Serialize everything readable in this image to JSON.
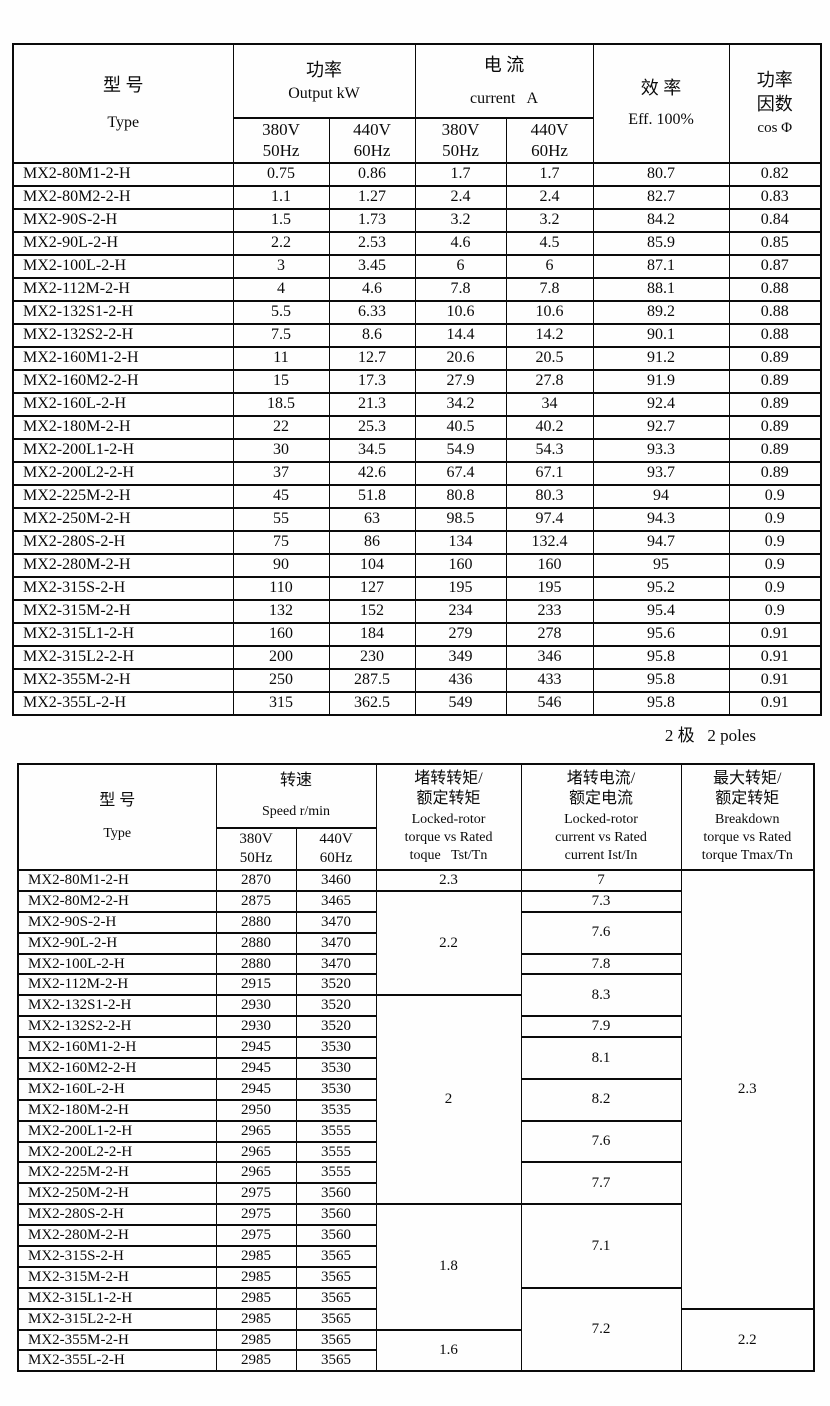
{
  "colors": {
    "background": "#fefefe",
    "border": "#0a0a0a",
    "text": "#0a0a0a"
  },
  "caption": {
    "label": "2 极   2 poles"
  },
  "table1": {
    "header": {
      "type_cn": "型 号",
      "type_en": "Type",
      "power_cn": "功率",
      "power_en": "Output kW",
      "current_cn": "电 流",
      "current_en": "current   A",
      "eff_cn": "效 率",
      "eff_en": "Eff. 100%",
      "pf_cn": "功率\n因数",
      "pf_en": "cos Φ",
      "sub_headers": [
        "380V\n50Hz",
        "440V\n60Hz",
        "380V\n50Hz",
        "440V\n60Hz"
      ]
    },
    "rows": [
      [
        "MX2-80M1-2-H",
        "0.75",
        "0.86",
        "1.7",
        "1.7",
        "80.7",
        "0.82"
      ],
      [
        "MX2-80M2-2-H",
        "1.1",
        "1.27",
        "2.4",
        "2.4",
        "82.7",
        "0.83"
      ],
      [
        "MX2-90S-2-H",
        "1.5",
        "1.73",
        "3.2",
        "3.2",
        "84.2",
        "0.84"
      ],
      [
        "MX2-90L-2-H",
        "2.2",
        "2.53",
        "4.6",
        "4.5",
        "85.9",
        "0.85"
      ],
      [
        "MX2-100L-2-H",
        "3",
        "3.45",
        "6",
        "6",
        "87.1",
        "0.87"
      ],
      [
        "MX2-112M-2-H",
        "4",
        "4.6",
        "7.8",
        "7.8",
        "88.1",
        "0.88"
      ],
      [
        "MX2-132S1-2-H",
        "5.5",
        "6.33",
        "10.6",
        "10.6",
        "89.2",
        "0.88"
      ],
      [
        "MX2-132S2-2-H",
        "7.5",
        "8.6",
        "14.4",
        "14.2",
        "90.1",
        "0.88"
      ],
      [
        "MX2-160M1-2-H",
        "11",
        "12.7",
        "20.6",
        "20.5",
        "91.2",
        "0.89"
      ],
      [
        "MX2-160M2-2-H",
        "15",
        "17.3",
        "27.9",
        "27.8",
        "91.9",
        "0.89"
      ],
      [
        "MX2-160L-2-H",
        "18.5",
        "21.3",
        "34.2",
        "34",
        "92.4",
        "0.89"
      ],
      [
        "MX2-180M-2-H",
        "22",
        "25.3",
        "40.5",
        "40.2",
        "92.7",
        "0.89"
      ],
      [
        "MX2-200L1-2-H",
        "30",
        "34.5",
        "54.9",
        "54.3",
        "93.3",
        "0.89"
      ],
      [
        "MX2-200L2-2-H",
        "37",
        "42.6",
        "67.4",
        "67.1",
        "93.7",
        "0.89"
      ],
      [
        "MX2-225M-2-H",
        "45",
        "51.8",
        "80.8",
        "80.3",
        "94",
        "0.9"
      ],
      [
        "MX2-250M-2-H",
        "55",
        "63",
        "98.5",
        "97.4",
        "94.3",
        "0.9"
      ],
      [
        "MX2-280S-2-H",
        "75",
        "86",
        "134",
        "132.4",
        "94.7",
        "0.9"
      ],
      [
        "MX2-280M-2-H",
        "90",
        "104",
        "160",
        "160",
        "95",
        "0.9"
      ],
      [
        "MX2-315S-2-H",
        "110",
        "127",
        "195",
        "195",
        "95.2",
        "0.9"
      ],
      [
        "MX2-315M-2-H",
        "132",
        "152",
        "234",
        "233",
        "95.4",
        "0.9"
      ],
      [
        "MX2-315L1-2-H",
        "160",
        "184",
        "279",
        "278",
        "95.6",
        "0.91"
      ],
      [
        "MX2-315L2-2-H",
        "200",
        "230",
        "349",
        "346",
        "95.8",
        "0.91"
      ],
      [
        "MX2-355M-2-H",
        "250",
        "287.5",
        "436",
        "433",
        "95.8",
        "0.91"
      ],
      [
        "MX2-355L-2-H",
        "315",
        "362.5",
        "549",
        "546",
        "95.8",
        "0.91"
      ]
    ]
  },
  "table2": {
    "header": {
      "type_cn": "型 号",
      "type_en": "Type",
      "speed_cn": "转速",
      "speed_en": "Speed r/min",
      "tst_cn": "堵转转矩/\n额定转矩",
      "tst_en": "Locked-rotor\ntorque vs Rated\ntoque   Tst/Tn",
      "ist_cn": "堵转电流/\n额定电流",
      "ist_en": "Locked-rotor\ncurrent vs Rated\ncurrent Ist/In",
      "tmax_cn": "最大转矩/\n额定转矩",
      "tmax_en": "Breakdown\ntorque vs Rated\ntorque Tmax/Tn",
      "sub_headers": [
        "380V\n50Hz",
        "440V\n60Hz"
      ]
    },
    "rows": [
      [
        "MX2-80M1-2-H",
        "2870",
        "3460"
      ],
      [
        "MX2-80M2-2-H",
        "2875",
        "3465"
      ],
      [
        "MX2-90S-2-H",
        "2880",
        "3470"
      ],
      [
        "MX2-90L-2-H",
        "2880",
        "3470"
      ],
      [
        "MX2-100L-2-H",
        "2880",
        "3470"
      ],
      [
        "MX2-112M-2-H",
        "2915",
        "3520"
      ],
      [
        "MX2-132S1-2-H",
        "2930",
        "3520"
      ],
      [
        "MX2-132S2-2-H",
        "2930",
        "3520"
      ],
      [
        "MX2-160M1-2-H",
        "2945",
        "3530"
      ],
      [
        "MX2-160M2-2-H",
        "2945",
        "3530"
      ],
      [
        "MX2-160L-2-H",
        "2945",
        "3530"
      ],
      [
        "MX2-180M-2-H",
        "2950",
        "3535"
      ],
      [
        "MX2-200L1-2-H",
        "2965",
        "3555"
      ],
      [
        "MX2-200L2-2-H",
        "2965",
        "3555"
      ],
      [
        "MX2-225M-2-H",
        "2965",
        "3555"
      ],
      [
        "MX2-250M-2-H",
        "2975",
        "3560"
      ],
      [
        "MX2-280S-2-H",
        "2975",
        "3560"
      ],
      [
        "MX2-280M-2-H",
        "2975",
        "3560"
      ],
      [
        "MX2-315S-2-H",
        "2985",
        "3565"
      ],
      [
        "MX2-315M-2-H",
        "2985",
        "3565"
      ],
      [
        "MX2-315L1-2-H",
        "2985",
        "3565"
      ],
      [
        "MX2-315L2-2-H",
        "2985",
        "3565"
      ],
      [
        "MX2-355M-2-H",
        "2985",
        "3565"
      ],
      [
        "MX2-355L-2-H",
        "2985",
        "3565"
      ]
    ],
    "tst_tn_cells": [
      {
        "value": "2.3",
        "span": 1
      },
      {
        "value": "2.2",
        "span": 5
      },
      {
        "value": "2",
        "span": 10
      },
      {
        "value": "1.8",
        "span": 6
      },
      {
        "value": "1.6",
        "span": 2
      }
    ],
    "ist_in_cells": [
      {
        "value": "7",
        "span": 1
      },
      {
        "value": "7.3",
        "span": 1
      },
      {
        "value": "7.6",
        "span": 2
      },
      {
        "value": "7.8",
        "span": 1
      },
      {
        "value": "8.3",
        "span": 2
      },
      {
        "value": "7.9",
        "span": 1
      },
      {
        "value": "8.1",
        "span": 2
      },
      {
        "value": "8.2",
        "span": 2
      },
      {
        "value": "7.6",
        "span": 2
      },
      {
        "value": "7.7",
        "span": 2
      },
      {
        "value": "7.1",
        "span": 4
      },
      {
        "value": "7.2",
        "span": 4
      }
    ],
    "tmax_tn_cells": [
      {
        "value": "2.3",
        "span": 21
      },
      {
        "value": "2.2",
        "span": 3
      }
    ]
  }
}
